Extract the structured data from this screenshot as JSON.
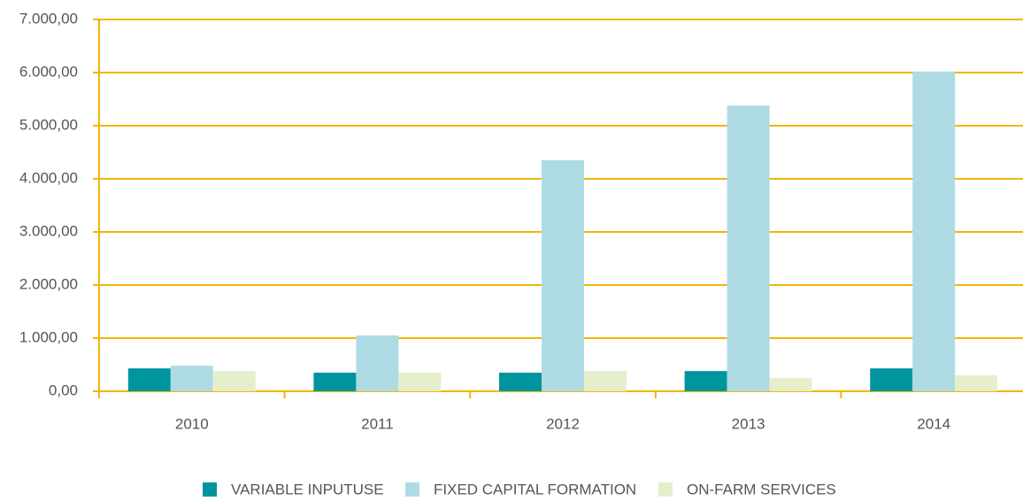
{
  "chart_data": {
    "type": "bar",
    "categories": [
      "2010",
      "2011",
      "2012",
      "2013",
      "2014"
    ],
    "series": [
      {
        "name": "VARIABLE INPUTUSE",
        "color": "#00959e",
        "values": [
          430,
          350,
          350,
          380,
          430
        ]
      },
      {
        "name": "FIXED CAPITAL FORMATION",
        "color": "#aedbe3",
        "values": [
          480,
          1050,
          4350,
          5380,
          6020
        ]
      },
      {
        "name": "ON-FARM SERVICES",
        "color": "#e6efcc",
        "values": [
          380,
          350,
          380,
          250,
          300
        ]
      }
    ],
    "ylim": [
      0,
      7000
    ],
    "yticks": [
      {
        "value": 0,
        "label": "0,00"
      },
      {
        "value": 1000,
        "label": "1.000,00"
      },
      {
        "value": 2000,
        "label": "2.000,00"
      },
      {
        "value": 3000,
        "label": "3.000,00"
      },
      {
        "value": 4000,
        "label": "4.000,00"
      },
      {
        "value": 5000,
        "label": "5.000,00"
      },
      {
        "value": 6000,
        "label": "6.000,00"
      },
      {
        "value": 7000,
        "label": "7.000,00"
      }
    ],
    "grid": true,
    "grid_color": "#f5b400",
    "legend": "bottom"
  }
}
